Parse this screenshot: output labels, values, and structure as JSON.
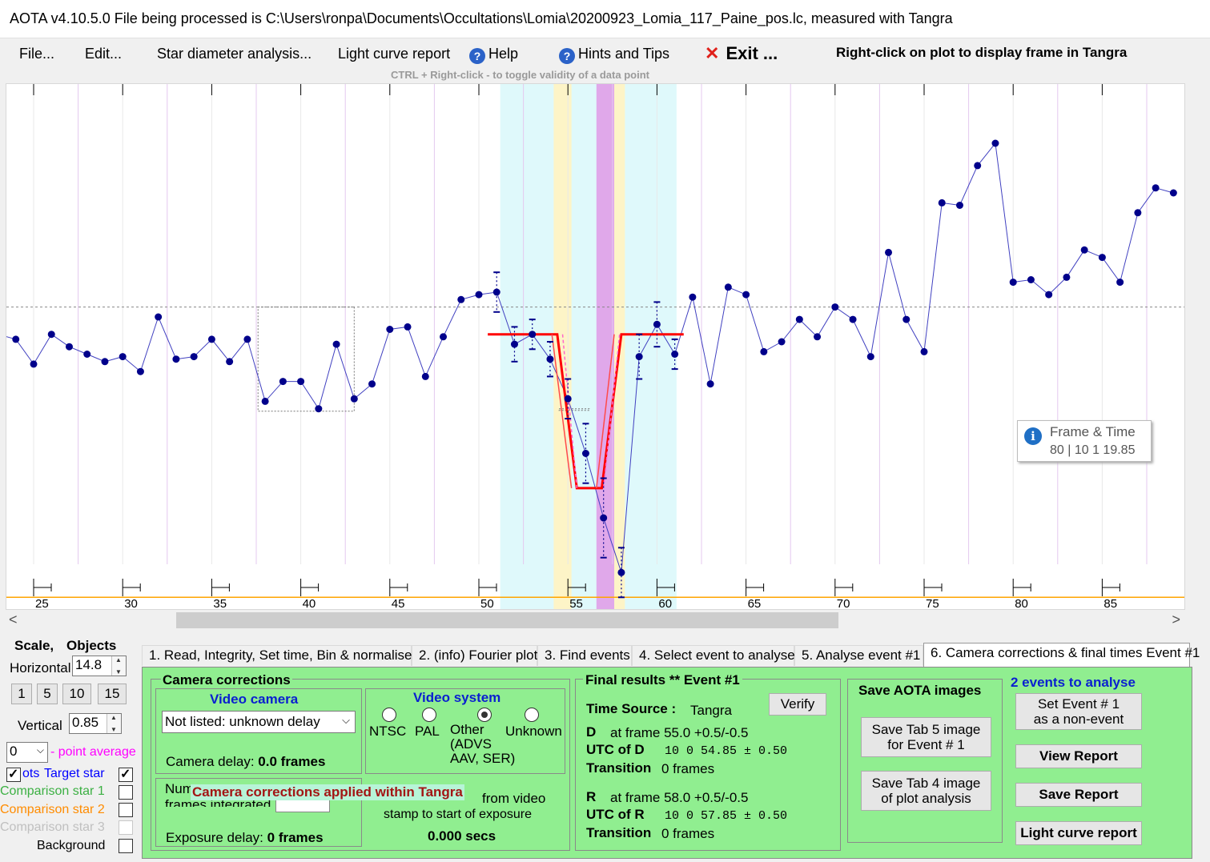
{
  "window": {
    "title": "AOTA v4.10.5.0    File being processed is C:\\Users\\ronpa\\Documents\\Occultations\\Lomia\\20200923_Lomia_117_Paine_pos.lc, measured with Tangra"
  },
  "menu": {
    "file": "File...",
    "edit": "Edit...",
    "star_diameter": "Star diameter analysis...",
    "light_curve_report": "Light curve report",
    "help": "Help",
    "hints": "Hints and Tips",
    "exit": "Exit ...",
    "right_click_hint": "Right-click on plot to display frame in Tangra",
    "ctrl_hint": "CTRL + Right-click  -  to toggle validity of a data point"
  },
  "plot": {
    "x_ticks": [
      "25",
      "30",
      "35",
      "40",
      "45",
      "50",
      "55",
      "60",
      "65",
      "70",
      "75",
      "80",
      "85"
    ],
    "frame_time_title": "Frame & Time",
    "frame_time_value": "80 | 10  1 19.85"
  },
  "chart_data": {
    "type": "line",
    "x": [
      23,
      24,
      25,
      26,
      27,
      28,
      29,
      30,
      31,
      32,
      33,
      34,
      35,
      36,
      37,
      38,
      39,
      40,
      41,
      42,
      43,
      44,
      45,
      46,
      47,
      48,
      49,
      50,
      51,
      52,
      53,
      54,
      55,
      56,
      57,
      58,
      59,
      60,
      61,
      62,
      63,
      64,
      65,
      66,
      67,
      68,
      69,
      70,
      71,
      72,
      73,
      74,
      75,
      76,
      77,
      78,
      79,
      80,
      81,
      82,
      83,
      84,
      85,
      86,
      87,
      88,
      89
    ],
    "y": [
      1.03,
      1.01,
      0.91,
      1.03,
      0.98,
      0.95,
      0.92,
      0.94,
      0.88,
      1.1,
      0.93,
      0.94,
      1.01,
      0.92,
      1.01,
      0.76,
      0.84,
      0.84,
      0.73,
      0.99,
      0.77,
      0.83,
      1.05,
      1.06,
      0.86,
      1.02,
      1.17,
      1.19,
      1.2,
      0.99,
      1.03,
      0.93,
      0.77,
      0.55,
      0.29,
      0.07,
      0.94,
      1.07,
      0.95,
      1.18,
      0.83,
      1.22,
      1.19,
      0.96,
      1.0,
      1.09,
      1.02,
      1.14,
      1.09,
      0.94,
      1.36,
      1.09,
      0.96,
      1.56,
      1.55,
      1.71,
      1.8,
      1.24,
      1.25,
      1.19,
      1.26,
      1.37,
      1.34,
      1.24,
      1.52,
      1.62,
      1.6
    ],
    "model_curve": {
      "baseline": 1.03,
      "bottom": 0.41,
      "d_frame": 55.0,
      "r_frame": 58.0
    },
    "mean_level": 1.14,
    "zero_level": -0.03,
    "xlim": [
      22.5,
      89
    ],
    "colors": {
      "data": "#00008b",
      "line": "#4040c0",
      "model": "#ff0000",
      "zero_line": "#ffa500",
      "region_cyan": "#dff9fb",
      "region_yellow": "#fdf4c7",
      "region_purple": "#e0a8ea",
      "grid_vertical": "#e4c8ef"
    }
  },
  "left_panel": {
    "scale_label": "Scale,",
    "objects_label": "Objects",
    "horizontal_label": "Horizontal",
    "horizontal_value": "14.8",
    "zoom_buttons": [
      "1",
      "5",
      "10",
      "15"
    ],
    "vertical_label": "Vertical",
    "vertical_value": "0.85",
    "point_avg_value": "0",
    "point_avg_label": "- point average",
    "dots_label": "ots",
    "target_star": "Target star",
    "comp1": "Comparison star 1",
    "comp2": "Comparison star 2",
    "comp3": "Comparison star 3",
    "background": "Background",
    "colors": {
      "target": "#0000ff",
      "comp1": "#3cb043",
      "comp2": "#ff8c00",
      "comp3": "#c0c0c0",
      "point_avg": "#ff00ff"
    }
  },
  "tabs": [
    {
      "label": "1.  Read, Integrity, Set time, Bin & normalise"
    },
    {
      "label": "2. (info)  Fourier plot"
    },
    {
      "label": "3. Find events"
    },
    {
      "label": "4. Select event to analyse"
    },
    {
      "label": "5. Analyse event #1"
    },
    {
      "label": "6. Camera corrections & final times Event #1"
    }
  ],
  "camera_corrections": {
    "title": "Camera corrections",
    "video_camera_title": "Video camera",
    "camera_select": "Not listed: unknown delay",
    "camera_delay_label": "Camera delay:",
    "camera_delay_value": "0.0 frames",
    "video_system_title": "Video system",
    "systems": [
      "NTSC",
      "PAL",
      "Other\n(ADVS\nAAV, SER)",
      "Unknown"
    ],
    "num_frames_label": "Num",
    "frames_integrated_label": "frames integrated",
    "applied_banner": "Camera corrections applied within Tangra",
    "from_video_label": "from video",
    "stamp_label": "stamp to start of exposure",
    "secs_value": "0.000 secs",
    "exposure_delay_label": "Exposure delay:",
    "exposure_delay_value": "0 frames"
  },
  "final_results": {
    "title": "Final results  **  Event #1",
    "time_source_label": "Time Source :",
    "time_source_value": "Tangra",
    "verify": "Verify",
    "d_label": "D",
    "d_frame": "at frame 55.0  +0.5/-0.5",
    "utc_d_label": "UTC of D",
    "utc_d_value": "10  0 54.85  ± 0.50",
    "transition_label": "Transition",
    "transition_d_value": "0 frames",
    "r_label": "R",
    "r_frame": "at frame 58.0  +0.5/-0.5",
    "utc_r_label": "UTC of R",
    "utc_r_value": "10  0 57.85  ± 0.50",
    "transition_r_value": "0 frames"
  },
  "save_images": {
    "title": "Save AOTA images",
    "tab5": "Save Tab 5 image\nfor Event # 1",
    "tab4": "Save Tab 4 image\nof plot analysis"
  },
  "events": {
    "title": "2  events to analyse",
    "set_event": "Set Event # 1\nas a non-event",
    "view_report": "View Report",
    "save_report": "Save Report",
    "lc_report": "Light curve report"
  }
}
